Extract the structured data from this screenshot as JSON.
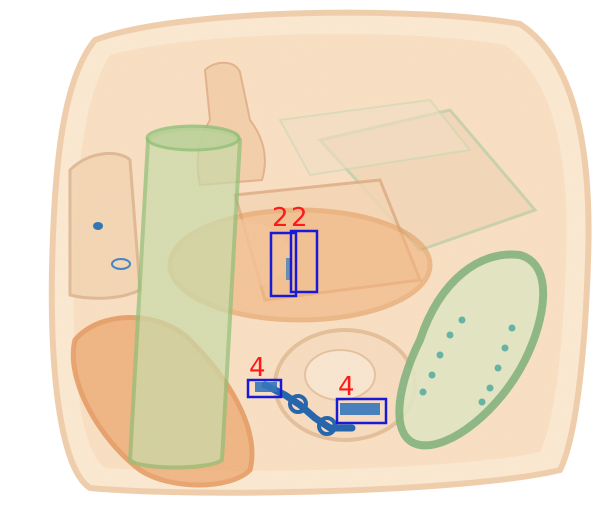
{
  "image": {
    "kind": "x-ray baggage scan",
    "background": "#ffffff",
    "organic_color": "#e9a66a",
    "mixed_color": "#8fbf6e",
    "metal_color": "#1e5fa8",
    "box_color": "#1a1ad6",
    "label_color": "#ff1a1a"
  },
  "detections": [
    {
      "label": "2",
      "icon": "bounding-box"
    },
    {
      "label": "2",
      "icon": "bounding-box"
    },
    {
      "label": "4",
      "icon": "bounding-box"
    },
    {
      "label": "4",
      "icon": "bounding-box"
    }
  ]
}
